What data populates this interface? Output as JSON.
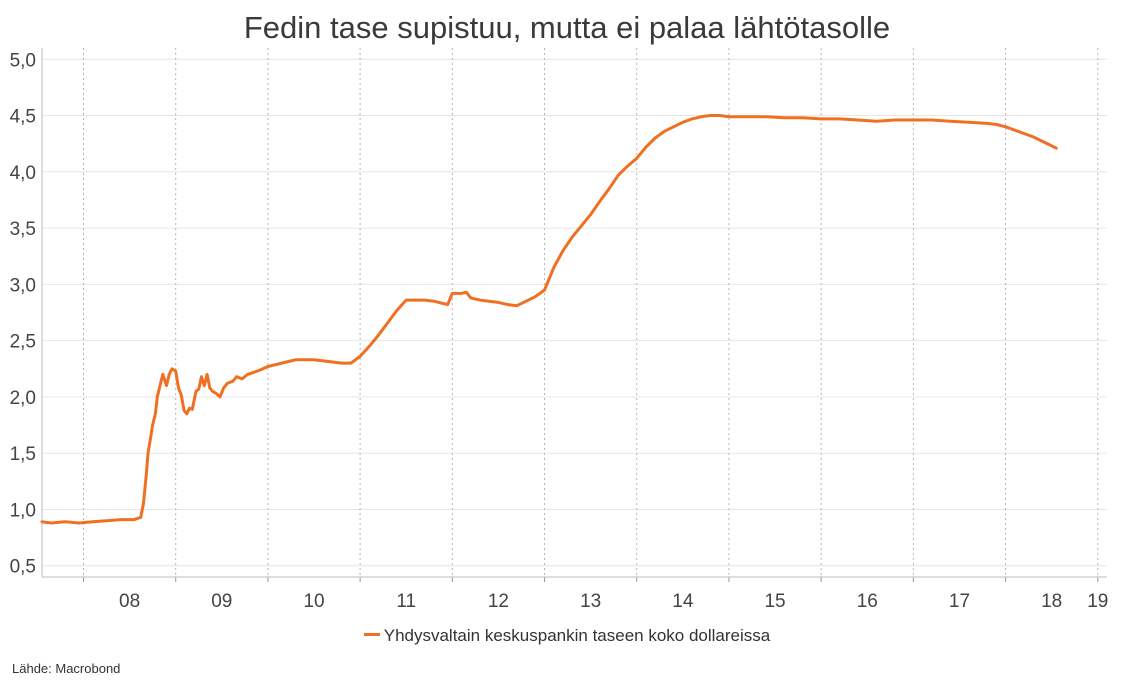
{
  "chart_data": {
    "type": "line",
    "title": "Fedin tase supistuu, mutta ei palaa lähtötasolle",
    "xlabel": "",
    "ylabel": "",
    "ylim": [
      0.4,
      5.1
    ],
    "xlim": [
      2007.55,
      2019.1
    ],
    "y_ticks": [
      "0,5",
      "1,0",
      "1,5",
      "2,0",
      "2,5",
      "3,0",
      "3,5",
      "4,0",
      "4,5",
      "5,0"
    ],
    "y_tick_values": [
      0.5,
      1.0,
      1.5,
      2.0,
      2.5,
      3.0,
      3.5,
      4.0,
      4.5,
      5.0
    ],
    "x_ticks": [
      "08",
      "09",
      "10",
      "11",
      "12",
      "13",
      "14",
      "15",
      "16",
      "17",
      "18",
      "19"
    ],
    "year_boundaries": [
      2008,
      2009,
      2010,
      2011,
      2012,
      2013,
      2014,
      2015,
      2016,
      2017,
      2018,
      2019
    ],
    "grid": true,
    "legend_position": "bottom-center",
    "series_color": "#F07023",
    "series": [
      {
        "name": "Yhdysvaltain keskuspankin taseen koko dollareissa",
        "points": [
          [
            2007.55,
            0.89
          ],
          [
            2007.65,
            0.88
          ],
          [
            2007.8,
            0.89
          ],
          [
            2007.95,
            0.88
          ],
          [
            2008.1,
            0.89
          ],
          [
            2008.25,
            0.9
          ],
          [
            2008.4,
            0.91
          ],
          [
            2008.55,
            0.91
          ],
          [
            2008.62,
            0.93
          ],
          [
            2008.65,
            1.05
          ],
          [
            2008.68,
            1.3
          ],
          [
            2008.7,
            1.5
          ],
          [
            2008.72,
            1.6
          ],
          [
            2008.75,
            1.75
          ],
          [
            2008.78,
            1.85
          ],
          [
            2008.8,
            2.0
          ],
          [
            2008.83,
            2.1
          ],
          [
            2008.86,
            2.2
          ],
          [
            2008.9,
            2.1
          ],
          [
            2008.93,
            2.2
          ],
          [
            2008.96,
            2.25
          ],
          [
            2009.0,
            2.23
          ],
          [
            2009.03,
            2.08
          ],
          [
            2009.06,
            2.02
          ],
          [
            2009.09,
            1.88
          ],
          [
            2009.12,
            1.85
          ],
          [
            2009.15,
            1.9
          ],
          [
            2009.18,
            1.89
          ],
          [
            2009.22,
            2.05
          ],
          [
            2009.25,
            2.07
          ],
          [
            2009.28,
            2.18
          ],
          [
            2009.31,
            2.1
          ],
          [
            2009.34,
            2.2
          ],
          [
            2009.37,
            2.08
          ],
          [
            2009.4,
            2.05
          ],
          [
            2009.44,
            2.03
          ],
          [
            2009.48,
            2.0
          ],
          [
            2009.52,
            2.08
          ],
          [
            2009.56,
            2.12
          ],
          [
            2009.62,
            2.14
          ],
          [
            2009.66,
            2.18
          ],
          [
            2009.72,
            2.16
          ],
          [
            2009.78,
            2.2
          ],
          [
            2009.85,
            2.22
          ],
          [
            2009.92,
            2.24
          ],
          [
            2010.0,
            2.27
          ],
          [
            2010.1,
            2.29
          ],
          [
            2010.2,
            2.31
          ],
          [
            2010.3,
            2.33
          ],
          [
            2010.4,
            2.33
          ],
          [
            2010.5,
            2.33
          ],
          [
            2010.6,
            2.32
          ],
          [
            2010.7,
            2.31
          ],
          [
            2010.8,
            2.3
          ],
          [
            2010.9,
            2.3
          ],
          [
            2011.0,
            2.36
          ],
          [
            2011.1,
            2.45
          ],
          [
            2011.2,
            2.55
          ],
          [
            2011.3,
            2.66
          ],
          [
            2011.4,
            2.77
          ],
          [
            2011.5,
            2.86
          ],
          [
            2011.6,
            2.86
          ],
          [
            2011.7,
            2.86
          ],
          [
            2011.8,
            2.85
          ],
          [
            2011.9,
            2.83
          ],
          [
            2011.95,
            2.82
          ],
          [
            2012.0,
            2.92
          ],
          [
            2012.1,
            2.92
          ],
          [
            2012.15,
            2.93
          ],
          [
            2012.2,
            2.88
          ],
          [
            2012.3,
            2.86
          ],
          [
            2012.4,
            2.85
          ],
          [
            2012.5,
            2.84
          ],
          [
            2012.6,
            2.82
          ],
          [
            2012.7,
            2.81
          ],
          [
            2012.8,
            2.85
          ],
          [
            2012.9,
            2.89
          ],
          [
            2013.0,
            2.95
          ],
          [
            2013.1,
            3.15
          ],
          [
            2013.2,
            3.3
          ],
          [
            2013.3,
            3.42
          ],
          [
            2013.4,
            3.52
          ],
          [
            2013.5,
            3.62
          ],
          [
            2013.6,
            3.74
          ],
          [
            2013.7,
            3.85
          ],
          [
            2013.8,
            3.97
          ],
          [
            2013.9,
            4.05
          ],
          [
            2014.0,
            4.12
          ],
          [
            2014.1,
            4.22
          ],
          [
            2014.2,
            4.3
          ],
          [
            2014.3,
            4.36
          ],
          [
            2014.4,
            4.4
          ],
          [
            2014.5,
            4.44
          ],
          [
            2014.6,
            4.47
          ],
          [
            2014.7,
            4.49
          ],
          [
            2014.8,
            4.5
          ],
          [
            2014.9,
            4.5
          ],
          [
            2015.0,
            4.49
          ],
          [
            2015.2,
            4.49
          ],
          [
            2015.4,
            4.49
          ],
          [
            2015.6,
            4.48
          ],
          [
            2015.8,
            4.48
          ],
          [
            2016.0,
            4.47
          ],
          [
            2016.2,
            4.47
          ],
          [
            2016.4,
            4.46
          ],
          [
            2016.6,
            4.45
          ],
          [
            2016.8,
            4.46
          ],
          [
            2017.0,
            4.46
          ],
          [
            2017.2,
            4.46
          ],
          [
            2017.4,
            4.45
          ],
          [
            2017.6,
            4.44
          ],
          [
            2017.8,
            4.43
          ],
          [
            2017.9,
            4.42
          ],
          [
            2018.0,
            4.4
          ],
          [
            2018.1,
            4.37
          ],
          [
            2018.2,
            4.34
          ],
          [
            2018.3,
            4.31
          ],
          [
            2018.4,
            4.27
          ],
          [
            2018.5,
            4.23
          ],
          [
            2018.55,
            4.21
          ]
        ]
      }
    ]
  },
  "legend": {
    "label": "Yhdysvaltain keskuspankin taseen koko dollareissa"
  },
  "source": "Lähde: Macrobond"
}
